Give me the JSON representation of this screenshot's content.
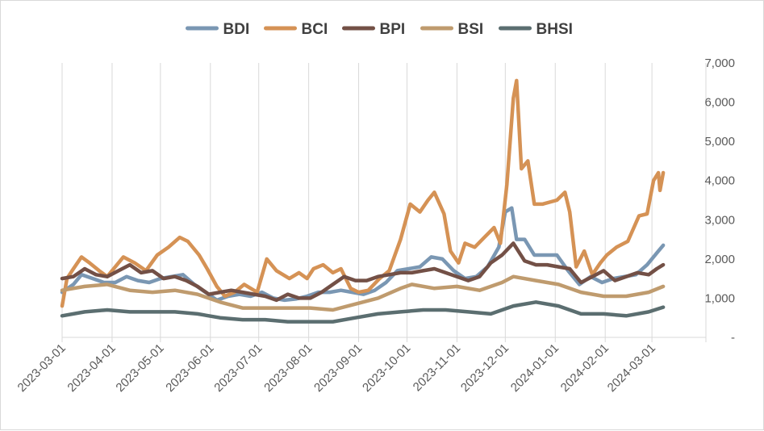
{
  "chart_data": {
    "type": "line",
    "title": "",
    "xlabel": "",
    "ylabel": "",
    "ylim": [
      0,
      7000
    ],
    "y_ticks": [
      0,
      1000,
      2000,
      3000,
      4000,
      5000,
      6000,
      7000
    ],
    "y_tick_labels": [
      "-",
      "1,000",
      "2,000",
      "3,000",
      "4,000",
      "5,000",
      "6,000",
      "7,000"
    ],
    "y_axis_side": "right",
    "x_ticks": [
      "2023-03-01",
      "2023-04-01",
      "2023-05-01",
      "2023-06-01",
      "2023-07-01",
      "2023-08-01",
      "2023-09-01",
      "2023-10-01",
      "2023-11-01",
      "2023-12-01",
      "2024-01-01",
      "2024-02-01",
      "2024-03-01"
    ],
    "grid": "vertical",
    "legend_position": "top",
    "series": [
      {
        "name": "BDI",
        "color": "#7a97b3",
        "points": [
          [
            "2023-03-01",
            1150
          ],
          [
            "2023-03-08",
            1350
          ],
          [
            "2023-03-13",
            1600
          ],
          [
            "2023-03-20",
            1500
          ],
          [
            "2023-03-27",
            1400
          ],
          [
            "2023-04-03",
            1400
          ],
          [
            "2023-04-10",
            1550
          ],
          [
            "2023-04-17",
            1450
          ],
          [
            "2023-04-24",
            1400
          ],
          [
            "2023-05-01",
            1500
          ],
          [
            "2023-05-08",
            1550
          ],
          [
            "2023-05-15",
            1600
          ],
          [
            "2023-05-22",
            1350
          ],
          [
            "2023-05-29",
            1150
          ],
          [
            "2023-06-05",
            950
          ],
          [
            "2023-06-12",
            1050
          ],
          [
            "2023-06-19",
            1100
          ],
          [
            "2023-06-26",
            1050
          ],
          [
            "2023-07-03",
            1150
          ],
          [
            "2023-07-10",
            1000
          ],
          [
            "2023-07-17",
            950
          ],
          [
            "2023-07-24",
            980
          ],
          [
            "2023-07-31",
            1050
          ],
          [
            "2023-08-07",
            1150
          ],
          [
            "2023-08-14",
            1150
          ],
          [
            "2023-08-21",
            1200
          ],
          [
            "2023-08-28",
            1150
          ],
          [
            "2023-09-04",
            1100
          ],
          [
            "2023-09-11",
            1200
          ],
          [
            "2023-09-18",
            1400
          ],
          [
            "2023-09-25",
            1700
          ],
          [
            "2023-10-02",
            1750
          ],
          [
            "2023-10-09",
            1800
          ],
          [
            "2023-10-16",
            2050
          ],
          [
            "2023-10-23",
            2000
          ],
          [
            "2023-10-30",
            1700
          ],
          [
            "2023-11-06",
            1500
          ],
          [
            "2023-11-13",
            1550
          ],
          [
            "2023-11-20",
            1800
          ],
          [
            "2023-11-27",
            2300
          ],
          [
            "2023-12-01",
            3200
          ],
          [
            "2023-12-05",
            3300
          ],
          [
            "2023-12-08",
            2500
          ],
          [
            "2023-12-13",
            2500
          ],
          [
            "2023-12-19",
            2100
          ],
          [
            "2023-12-26",
            2100
          ],
          [
            "2024-01-02",
            2100
          ],
          [
            "2024-01-09",
            1700
          ],
          [
            "2024-01-16",
            1350
          ],
          [
            "2024-01-23",
            1550
          ],
          [
            "2024-01-30",
            1400
          ],
          [
            "2024-02-06",
            1500
          ],
          [
            "2024-02-13",
            1550
          ],
          [
            "2024-02-20",
            1600
          ],
          [
            "2024-02-27",
            1850
          ],
          [
            "2024-03-05",
            2200
          ],
          [
            "2024-03-08",
            2350
          ]
        ]
      },
      {
        "name": "BCI",
        "color": "#d59255",
        "points": [
          [
            "2023-03-01",
            800
          ],
          [
            "2023-03-04",
            1500
          ],
          [
            "2023-03-08",
            1750
          ],
          [
            "2023-03-13",
            2050
          ],
          [
            "2023-03-18",
            1900
          ],
          [
            "2023-03-24",
            1700
          ],
          [
            "2023-03-29",
            1550
          ],
          [
            "2023-04-03",
            1800
          ],
          [
            "2023-04-08",
            2050
          ],
          [
            "2023-04-15",
            1900
          ],
          [
            "2023-04-22",
            1700
          ],
          [
            "2023-04-29",
            2100
          ],
          [
            "2023-05-06",
            2300
          ],
          [
            "2023-05-13",
            2550
          ],
          [
            "2023-05-18",
            2450
          ],
          [
            "2023-05-25",
            2100
          ],
          [
            "2023-05-30",
            1750
          ],
          [
            "2023-06-05",
            1300
          ],
          [
            "2023-06-10",
            1050
          ],
          [
            "2023-06-16",
            1150
          ],
          [
            "2023-06-22",
            1350
          ],
          [
            "2023-06-30",
            1150
          ],
          [
            "2023-07-06",
            2000
          ],
          [
            "2023-07-12",
            1700
          ],
          [
            "2023-07-20",
            1500
          ],
          [
            "2023-07-26",
            1650
          ],
          [
            "2023-07-31",
            1500
          ],
          [
            "2023-08-04",
            1750
          ],
          [
            "2023-08-10",
            1850
          ],
          [
            "2023-08-16",
            1650
          ],
          [
            "2023-08-21",
            1750
          ],
          [
            "2023-08-27",
            1250
          ],
          [
            "2023-09-01",
            1150
          ],
          [
            "2023-09-07",
            1200
          ],
          [
            "2023-09-14",
            1500
          ],
          [
            "2023-09-20",
            1700
          ],
          [
            "2023-09-27",
            2500
          ],
          [
            "2023-10-03",
            3400
          ],
          [
            "2023-10-09",
            3200
          ],
          [
            "2023-10-14",
            3500
          ],
          [
            "2023-10-18",
            3700
          ],
          [
            "2023-10-24",
            3150
          ],
          [
            "2023-10-28",
            2200
          ],
          [
            "2023-11-02",
            1900
          ],
          [
            "2023-11-06",
            2400
          ],
          [
            "2023-11-12",
            2300
          ],
          [
            "2023-11-18",
            2550
          ],
          [
            "2023-11-24",
            2800
          ],
          [
            "2023-11-28",
            2400
          ],
          [
            "2023-12-02",
            3900
          ],
          [
            "2023-12-06",
            6100
          ],
          [
            "2023-12-08",
            6550
          ],
          [
            "2023-12-11",
            4300
          ],
          [
            "2023-12-15",
            4500
          ],
          [
            "2023-12-19",
            3400
          ],
          [
            "2023-12-24",
            3400
          ],
          [
            "2024-01-02",
            3500
          ],
          [
            "2024-01-07",
            3700
          ],
          [
            "2024-01-10",
            3200
          ],
          [
            "2024-01-14",
            1800
          ],
          [
            "2024-01-19",
            2200
          ],
          [
            "2024-01-24",
            1600
          ],
          [
            "2024-01-29",
            1900
          ],
          [
            "2024-02-02",
            2100
          ],
          [
            "2024-02-08",
            2300
          ],
          [
            "2024-02-15",
            2450
          ],
          [
            "2024-02-22",
            3100
          ],
          [
            "2024-02-27",
            3150
          ],
          [
            "2024-03-02",
            4000
          ],
          [
            "2024-03-05",
            4200
          ],
          [
            "2024-03-06",
            3750
          ],
          [
            "2024-03-08",
            4200
          ]
        ]
      },
      {
        "name": "BPI",
        "color": "#735046",
        "points": [
          [
            "2023-03-01",
            1500
          ],
          [
            "2023-03-08",
            1550
          ],
          [
            "2023-03-15",
            1750
          ],
          [
            "2023-03-22",
            1600
          ],
          [
            "2023-03-29",
            1550
          ],
          [
            "2023-04-05",
            1700
          ],
          [
            "2023-04-12",
            1850
          ],
          [
            "2023-04-19",
            1650
          ],
          [
            "2023-04-26",
            1700
          ],
          [
            "2023-05-03",
            1500
          ],
          [
            "2023-05-10",
            1550
          ],
          [
            "2023-05-17",
            1450
          ],
          [
            "2023-05-24",
            1300
          ],
          [
            "2023-05-31",
            1100
          ],
          [
            "2023-06-07",
            1150
          ],
          [
            "2023-06-14",
            1200
          ],
          [
            "2023-06-21",
            1150
          ],
          [
            "2023-06-28",
            1100
          ],
          [
            "2023-07-05",
            1050
          ],
          [
            "2023-07-12",
            950
          ],
          [
            "2023-07-19",
            1100
          ],
          [
            "2023-07-26",
            1000
          ],
          [
            "2023-08-02",
            1000
          ],
          [
            "2023-08-09",
            1150
          ],
          [
            "2023-08-16",
            1350
          ],
          [
            "2023-08-23",
            1550
          ],
          [
            "2023-08-30",
            1450
          ],
          [
            "2023-09-06",
            1450
          ],
          [
            "2023-09-13",
            1550
          ],
          [
            "2023-09-20",
            1600
          ],
          [
            "2023-09-27",
            1650
          ],
          [
            "2023-10-04",
            1650
          ],
          [
            "2023-10-11",
            1700
          ],
          [
            "2023-10-18",
            1750
          ],
          [
            "2023-10-25",
            1650
          ],
          [
            "2023-11-01",
            1550
          ],
          [
            "2023-11-08",
            1450
          ],
          [
            "2023-11-15",
            1550
          ],
          [
            "2023-11-22",
            1900
          ],
          [
            "2023-11-29",
            2100
          ],
          [
            "2023-12-06",
            2400
          ],
          [
            "2023-12-13",
            1950
          ],
          [
            "2023-12-20",
            1850
          ],
          [
            "2023-12-27",
            1850
          ],
          [
            "2024-01-03",
            1800
          ],
          [
            "2024-01-10",
            1750
          ],
          [
            "2024-01-17",
            1400
          ],
          [
            "2024-01-24",
            1550
          ],
          [
            "2024-01-31",
            1700
          ],
          [
            "2024-02-07",
            1450
          ],
          [
            "2024-02-14",
            1550
          ],
          [
            "2024-02-21",
            1650
          ],
          [
            "2024-02-28",
            1600
          ],
          [
            "2024-03-04",
            1750
          ],
          [
            "2024-03-08",
            1850
          ]
        ]
      },
      {
        "name": "BSI",
        "color": "#bf9b6e",
        "points": [
          [
            "2023-03-01",
            1200
          ],
          [
            "2023-03-15",
            1300
          ],
          [
            "2023-03-29",
            1350
          ],
          [
            "2023-04-12",
            1200
          ],
          [
            "2023-04-26",
            1150
          ],
          [
            "2023-05-10",
            1200
          ],
          [
            "2023-05-24",
            1100
          ],
          [
            "2023-06-07",
            900
          ],
          [
            "2023-06-21",
            750
          ],
          [
            "2023-07-05",
            750
          ],
          [
            "2023-07-19",
            750
          ],
          [
            "2023-08-02",
            750
          ],
          [
            "2023-08-16",
            700
          ],
          [
            "2023-08-30",
            850
          ],
          [
            "2023-09-13",
            1000
          ],
          [
            "2023-09-27",
            1250
          ],
          [
            "2023-10-04",
            1350
          ],
          [
            "2023-10-18",
            1250
          ],
          [
            "2023-11-01",
            1300
          ],
          [
            "2023-11-15",
            1200
          ],
          [
            "2023-11-29",
            1400
          ],
          [
            "2023-12-06",
            1550
          ],
          [
            "2023-12-20",
            1450
          ],
          [
            "2024-01-03",
            1350
          ],
          [
            "2024-01-17",
            1150
          ],
          [
            "2024-01-31",
            1050
          ],
          [
            "2024-02-14",
            1050
          ],
          [
            "2024-02-28",
            1150
          ],
          [
            "2024-03-08",
            1300
          ]
        ]
      },
      {
        "name": "BHSI",
        "color": "#5b6e70",
        "points": [
          [
            "2023-03-01",
            550
          ],
          [
            "2023-03-15",
            650
          ],
          [
            "2023-03-29",
            700
          ],
          [
            "2023-04-12",
            650
          ],
          [
            "2023-04-26",
            650
          ],
          [
            "2023-05-10",
            650
          ],
          [
            "2023-05-24",
            600
          ],
          [
            "2023-06-07",
            500
          ],
          [
            "2023-06-21",
            450
          ],
          [
            "2023-07-05",
            450
          ],
          [
            "2023-07-19",
            400
          ],
          [
            "2023-08-02",
            400
          ],
          [
            "2023-08-16",
            400
          ],
          [
            "2023-08-30",
            500
          ],
          [
            "2023-09-13",
            600
          ],
          [
            "2023-09-27",
            650
          ],
          [
            "2023-10-11",
            700
          ],
          [
            "2023-10-25",
            700
          ],
          [
            "2023-11-08",
            650
          ],
          [
            "2023-11-22",
            600
          ],
          [
            "2023-12-06",
            800
          ],
          [
            "2023-12-20",
            900
          ],
          [
            "2024-01-03",
            800
          ],
          [
            "2024-01-17",
            600
          ],
          [
            "2024-01-31",
            600
          ],
          [
            "2024-02-14",
            550
          ],
          [
            "2024-02-28",
            650
          ],
          [
            "2024-03-08",
            770
          ]
        ]
      }
    ]
  }
}
